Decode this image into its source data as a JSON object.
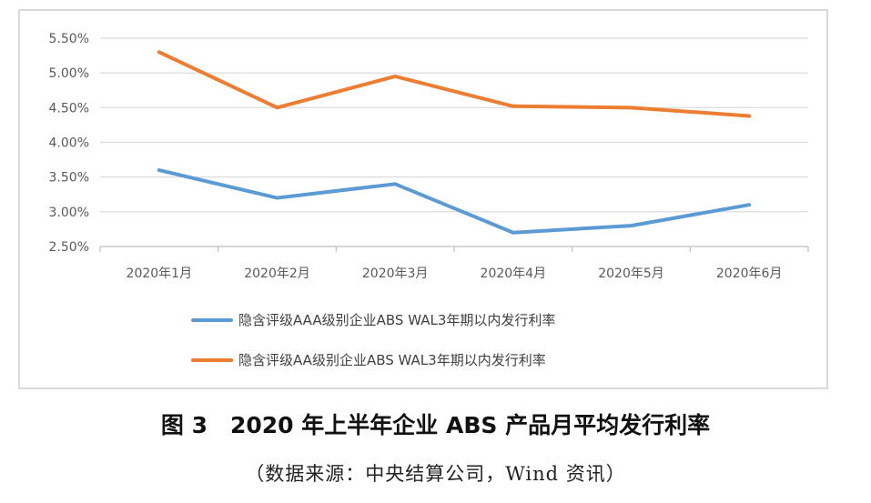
{
  "chart_data": {
    "type": "line",
    "categories": [
      "2020年1月",
      "2020年2月",
      "2020年3月",
      "2020年4月",
      "2020年5月",
      "2020年6月"
    ],
    "series": [
      {
        "name": "隐含评级AAA级别企业ABS WAL3年期以内发行利率",
        "values": [
          3.6,
          3.2,
          3.4,
          2.7,
          2.8,
          3.1
        ],
        "color": "#5b9bd5"
      },
      {
        "name": "隐含评级AA级别企业ABS WAL3年期以内发行利率",
        "values": [
          5.3,
          4.5,
          4.95,
          4.52,
          4.5,
          4.38
        ],
        "color": "#ed7d31"
      }
    ],
    "yticks": [
      "5.50%",
      "5.00%",
      "4.50%",
      "4.00%",
      "3.50%",
      "3.00%",
      "2.50%"
    ],
    "ylim": [
      2.5,
      5.5
    ],
    "grid": true,
    "legend_position": "bottom"
  },
  "caption": "图 3　2020 年上半年企业 ABS 产品月平均发行利率",
  "source": "（数据来源：中央结算公司，Wind 资讯）"
}
